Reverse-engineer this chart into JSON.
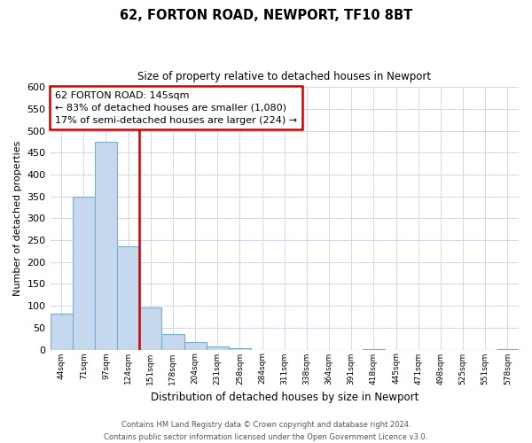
{
  "title": "62, FORTON ROAD, NEWPORT, TF10 8BT",
  "subtitle": "Size of property relative to detached houses in Newport",
  "xlabel": "Distribution of detached houses by size in Newport",
  "ylabel": "Number of detached properties",
  "bar_labels": [
    "44sqm",
    "71sqm",
    "97sqm",
    "124sqm",
    "151sqm",
    "178sqm",
    "204sqm",
    "231sqm",
    "258sqm",
    "284sqm",
    "311sqm",
    "338sqm",
    "364sqm",
    "391sqm",
    "418sqm",
    "445sqm",
    "471sqm",
    "498sqm",
    "525sqm",
    "551sqm",
    "578sqm"
  ],
  "bar_values": [
    83,
    349,
    476,
    237,
    97,
    35,
    18,
    7,
    3,
    0,
    0,
    0,
    0,
    0,
    2,
    0,
    0,
    0,
    0,
    0,
    2
  ],
  "bar_color": "#c5d8ee",
  "bar_edge_color": "#7badd4",
  "highlight_line_color": "#cc0000",
  "ylim": [
    0,
    600
  ],
  "yticks": [
    0,
    50,
    100,
    150,
    200,
    250,
    300,
    350,
    400,
    450,
    500,
    550,
    600
  ],
  "annotation_title": "62 FORTON ROAD: 145sqm",
  "annotation_line1": "← 83% of detached houses are smaller (1,080)",
  "annotation_line2": "17% of semi-detached houses are larger (224) →",
  "annotation_box_color": "#ffffff",
  "annotation_box_edge": "#cc0000",
  "footer_line1": "Contains HM Land Registry data © Crown copyright and database right 2024.",
  "footer_line2": "Contains public sector information licensed under the Open Government Licence v3.0.",
  "background_color": "#ffffff",
  "grid_color": "#d0d8e8"
}
